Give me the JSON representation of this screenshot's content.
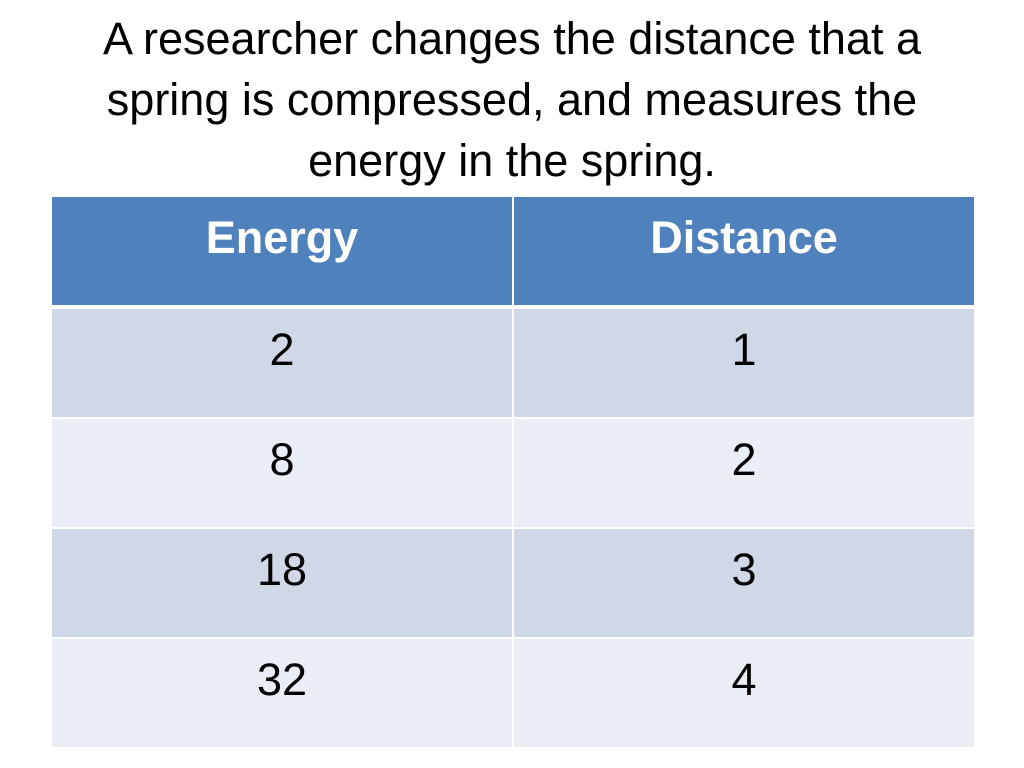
{
  "slide": {
    "title_lines": [
      "A researcher changes the distance that a",
      "spring is compressed, and measures the",
      "energy in the spring."
    ]
  },
  "table": {
    "headers": [
      "Energy",
      "Distance"
    ],
    "rows": [
      [
        "2",
        "1"
      ],
      [
        "8",
        "2"
      ],
      [
        "18",
        "3"
      ],
      [
        "32",
        "4"
      ]
    ]
  },
  "colors": {
    "header_bg": "#4f81bd",
    "row_odd_bg": "#d0d8e8",
    "row_even_bg": "#e9edf4"
  }
}
